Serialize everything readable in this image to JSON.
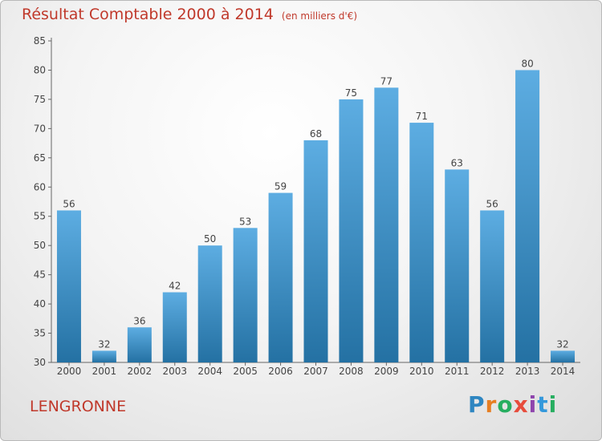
{
  "title": "Résultat Comptable 2000 à 2014",
  "subtitle": "(en milliers d'€)",
  "commune": "LENGRONNE",
  "logo": {
    "letters": [
      "P",
      "r",
      "o",
      "x",
      "i",
      "t",
      "i"
    ],
    "colors": [
      "#2e86c1",
      "#e67e22",
      "#27ae60",
      "#e74c3c",
      "#8e44ad",
      "#3498db",
      "#27ae60"
    ]
  },
  "colors": {
    "bar_top": "#5dade2",
    "bar_bottom": "#2471a3",
    "title": "#c0392b"
  },
  "chart_data": {
    "type": "bar",
    "title": "Résultat Comptable 2000 à 2014",
    "categories": [
      "2000",
      "2001",
      "2002",
      "2003",
      "2004",
      "2005",
      "2006",
      "2007",
      "2008",
      "2009",
      "2010",
      "2011",
      "2012",
      "2013",
      "2014"
    ],
    "values": [
      56,
      32,
      36,
      42,
      50,
      53,
      59,
      68,
      75,
      77,
      71,
      63,
      56,
      80,
      32
    ],
    "ylim": [
      30,
      85
    ],
    "yticks": [
      30,
      35,
      40,
      45,
      50,
      55,
      60,
      65,
      70,
      75,
      80,
      85
    ],
    "grid": false,
    "xlabel": "",
    "ylabel": ""
  }
}
